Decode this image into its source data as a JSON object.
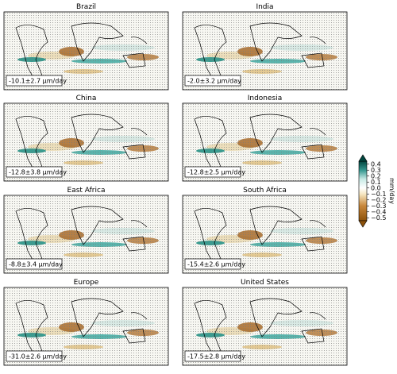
{
  "panels": [
    {
      "title": "Brazil",
      "annotation": "-10.1±2.7 μm/day"
    },
    {
      "title": "India",
      "annotation": "-2.0±3.2 μm/day"
    },
    {
      "title": "China",
      "annotation": "-12.8±3.8 μm/day"
    },
    {
      "title": "Indonesia",
      "annotation": "-12.8±2.5 μm/day"
    },
    {
      "title": "East Africa",
      "annotation": "-8.8±3.4 μm/day"
    },
    {
      "title": "South Africa",
      "annotation": "-15.4±2.6 μm/day"
    },
    {
      "title": "Europe",
      "annotation": "-31.0±2.6 μm/day"
    },
    {
      "title": "United States",
      "annotation": "-17.5±2.8 μm/day"
    }
  ],
  "colorbar": {
    "label": "mm/day",
    "lim": [
      -0.55,
      0.45
    ],
    "ticks": [
      0.4,
      0.3,
      0.2,
      0.1,
      {
        "value": 0,
        "label": "0.0"
      },
      {
        "value": -0.1,
        "label": "−0.1"
      },
      {
        "value": -0.2,
        "label": "−0.2"
      },
      {
        "value": -0.3,
        "label": "−0.3"
      },
      {
        "value": -0.4,
        "label": "−0.4"
      },
      {
        "value": -0.5,
        "label": "−0.5"
      }
    ]
  }
}
